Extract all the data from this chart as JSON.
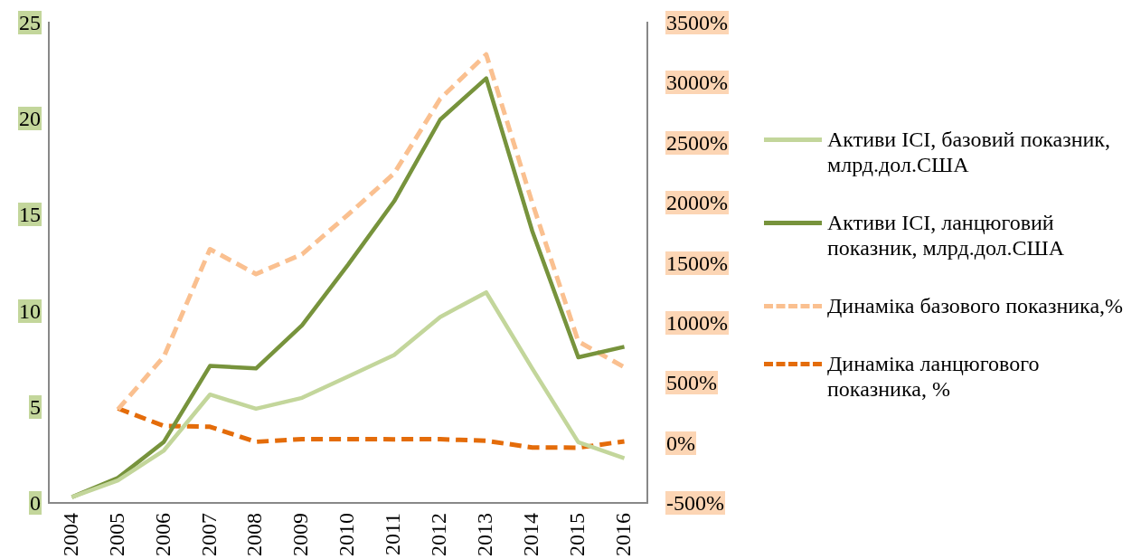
{
  "chart_data": {
    "type": "line",
    "categories": [
      "2004",
      "2005",
      "2006",
      "2007",
      "2008",
      "2009",
      "2010",
      "2011",
      "2012",
      "2013",
      "2014",
      "2015",
      "2016"
    ],
    "series": [
      {
        "name": "Активи ICI, базовий показник, млрд.дол.США",
        "color": "#c3d69b",
        "line_style": "solid",
        "values": [
          0.3,
          1.17,
          2.73,
          5.64,
          4.9,
          5.47,
          6.58,
          7.7,
          9.68,
          10.96,
          7.0,
          3.16,
          2.32
        ]
      },
      {
        "name": "Активи ICI, ланцюговий показник, млрд.дол.США",
        "color": "#77933c",
        "line_style": "solid",
        "values": [
          0.3,
          1.3,
          3.18,
          7.13,
          7.0,
          9.25,
          12.4,
          15.7,
          19.95,
          22.1,
          14.15,
          7.58,
          8.13
        ]
      },
      {
        "name": "Динаміка базового показника,%",
        "color": "#fac090",
        "line_style": "dashed",
        "axis": "y2",
        "values": [
          null,
          278,
          719,
          1613,
          1406,
          1571,
          1901,
          2244,
          2865,
          3235,
          2000,
          845,
          630
        ]
      },
      {
        "name": "Динаміка ланцюгового показника, %",
        "color": "#e46c0a",
        "line_style": "dashed",
        "axis": "y2",
        "values": [
          null,
          287,
          141,
          134,
          9,
          31,
          32,
          30,
          31,
          17,
          -38,
          -40,
          13
        ]
      }
    ],
    "ylim": [
      0,
      25
    ],
    "yticks": [
      0,
      5,
      10,
      15,
      20,
      25
    ],
    "y2lim": [
      -500,
      3500
    ],
    "y2ticks": [
      {
        "value": -500,
        "label": "-500%"
      },
      {
        "value": 0,
        "label": "0%"
      },
      {
        "value": 500,
        "label": "500%"
      },
      {
        "value": 1000,
        "label": "1000%"
      },
      {
        "value": 1500,
        "label": "1500%"
      },
      {
        "value": 2000,
        "label": "2000%"
      },
      {
        "value": 2500,
        "label": "2500%"
      },
      {
        "value": 3000,
        "label": "3000%"
      },
      {
        "value": 3500,
        "label": "3500%"
      }
    ],
    "grid": false,
    "legend": "right",
    "marker": "none"
  }
}
